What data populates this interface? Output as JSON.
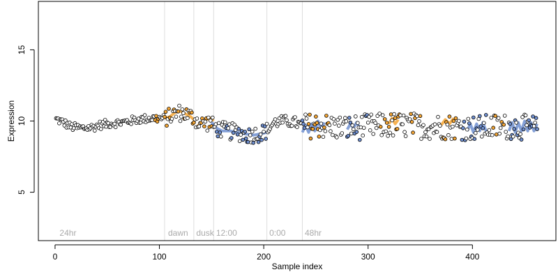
{
  "chart_data": {
    "type": "scatter",
    "xlabel": "Sample index",
    "ylabel": "Expression",
    "xlim": [
      -16,
      480
    ],
    "ylim": [
      1.6,
      18.4
    ],
    "x_ticks": [
      0,
      100,
      200,
      300,
      400
    ],
    "y_ticks": [
      5,
      10,
      15
    ],
    "x_tick_labels": [
      "0",
      "100",
      "200",
      "300",
      "400"
    ],
    "y_tick_labels": [
      "5",
      "10",
      "15"
    ],
    "region_lines": [
      105,
      133,
      152,
      203,
      237
    ],
    "region_labels": [
      {
        "x": 3,
        "text": "24hr"
      },
      {
        "x": 107,
        "text": "dawn"
      },
      {
        "x": 134,
        "text": "dusk"
      },
      {
        "x": 153,
        "text": "12:00"
      },
      {
        "x": 204,
        "text": "0:00"
      },
      {
        "x": 238,
        "text": "48hr"
      }
    ],
    "colors": {
      "orange": "#f4a534",
      "blue": "#6f8fd0",
      "black_point": "#000000",
      "divider": "#dddddd",
      "region_label": "#aaaaaa"
    },
    "trend_segments": [
      {
        "color": "orange",
        "points": [
          [
            105,
            10.2
          ],
          [
            110,
            10.3
          ],
          [
            115,
            10.6
          ],
          [
            120,
            10.7
          ],
          [
            125,
            10.5
          ],
          [
            130,
            10.3
          ],
          [
            133,
            10.1
          ]
        ]
      },
      {
        "color": "orange",
        "points": [
          [
            136,
            9.6
          ],
          [
            140,
            9.9
          ],
          [
            145,
            10.1
          ],
          [
            149,
            10.2
          ],
          [
            152,
            10.0
          ]
        ]
      },
      {
        "color": "blue",
        "points": [
          [
            150,
            9.9
          ],
          [
            155,
            9.5
          ],
          [
            160,
            9.3
          ],
          [
            168,
            9.3
          ],
          [
            175,
            9.2
          ],
          [
            182,
            9.1
          ],
          [
            190,
            9.0
          ],
          [
            197,
            9.1
          ],
          [
            203,
            9.2
          ]
        ]
      },
      {
        "color": "blue",
        "points": [
          [
            237,
            9.2
          ],
          [
            240,
            9.7
          ],
          [
            243,
            9.2
          ],
          [
            246,
            9.8
          ],
          [
            249,
            9.3
          ],
          [
            252,
            10.0
          ],
          [
            255,
            9.4
          ],
          [
            258,
            9.9
          ]
        ]
      },
      {
        "color": "blue",
        "points": [
          [
            280,
            9.4
          ],
          [
            283,
            9.8
          ],
          [
            286,
            9.5
          ],
          [
            289,
            9.9
          ],
          [
            292,
            9.5
          ]
        ]
      },
      {
        "color": "orange",
        "points": [
          [
            320,
            9.8
          ],
          [
            323,
            10.2
          ],
          [
            326,
            9.8
          ],
          [
            329,
            10.1
          ]
        ]
      },
      {
        "color": "orange",
        "points": [
          [
            370,
            9.7
          ],
          [
            374,
            10.1
          ],
          [
            378,
            9.8
          ],
          [
            382,
            10.2
          ]
        ]
      },
      {
        "color": "blue",
        "points": [
          [
            395,
            9.3
          ],
          [
            398,
            9.8
          ],
          [
            401,
            9.2
          ],
          [
            404,
            9.8
          ],
          [
            407,
            9.3
          ],
          [
            410,
            9.9
          ],
          [
            413,
            9.3
          ]
        ]
      },
      {
        "color": "blue",
        "points": [
          [
            435,
            9.3
          ],
          [
            438,
            9.9
          ],
          [
            441,
            9.2
          ],
          [
            444,
            9.9
          ],
          [
            447,
            9.3
          ],
          [
            450,
            10.0
          ],
          [
            453,
            9.3
          ],
          [
            456,
            9.9
          ],
          [
            459,
            9.3
          ],
          [
            462,
            9.8
          ]
        ]
      }
    ],
    "points_generator": {
      "n": 462,
      "base_curve": [
        [
          2,
          10.1
        ],
        [
          8,
          9.9
        ],
        [
          15,
          9.6
        ],
        [
          25,
          9.5
        ],
        [
          35,
          9.55
        ],
        [
          45,
          9.75
        ],
        [
          55,
          9.85
        ],
        [
          65,
          9.9
        ],
        [
          75,
          10.05
        ],
        [
          85,
          10.15
        ],
        [
          95,
          10.2
        ],
        [
          105,
          10.15
        ],
        [
          112,
          10.4
        ],
        [
          118,
          10.6
        ],
        [
          125,
          10.5
        ],
        [
          133,
          10.2
        ],
        [
          140,
          9.8
        ],
        [
          148,
          9.9
        ],
        [
          152,
          9.6
        ],
        [
          158,
          9.4
        ],
        [
          165,
          9.3
        ],
        [
          175,
          9.2
        ],
        [
          185,
          9.0
        ],
        [
          195,
          9.1
        ],
        [
          203,
          9.3
        ],
        [
          210,
          9.9
        ],
        [
          220,
          10.0
        ],
        [
          230,
          9.9
        ],
        [
          237,
          9.6
        ],
        [
          250,
          9.7
        ],
        [
          265,
          9.6
        ],
        [
          280,
          9.5
        ],
        [
          300,
          9.6
        ],
        [
          320,
          9.7
        ],
        [
          340,
          9.7
        ],
        [
          360,
          9.6
        ],
        [
          380,
          9.6
        ],
        [
          400,
          9.5
        ],
        [
          420,
          9.6
        ],
        [
          440,
          9.6
        ],
        [
          462,
          9.5
        ]
      ],
      "jitter_segments": [
        [
          0,
          105,
          0.15
        ],
        [
          105,
          205,
          0.3
        ],
        [
          205,
          237,
          0.2
        ],
        [
          237,
          463,
          0.45
        ]
      ],
      "orange_ranges": [
        [
          95,
          100
        ],
        [
          105,
          133
        ],
        [
          140,
          152
        ],
        [
          240,
          262
        ],
        [
          312,
          330
        ],
        [
          340,
          350
        ],
        [
          372,
          385
        ],
        [
          420,
          430
        ]
      ],
      "blue_ranges": [
        [
          152,
          203
        ],
        [
          237,
          250
        ],
        [
          280,
          300
        ],
        [
          390,
          415
        ],
        [
          435,
          462
        ]
      ]
    }
  }
}
